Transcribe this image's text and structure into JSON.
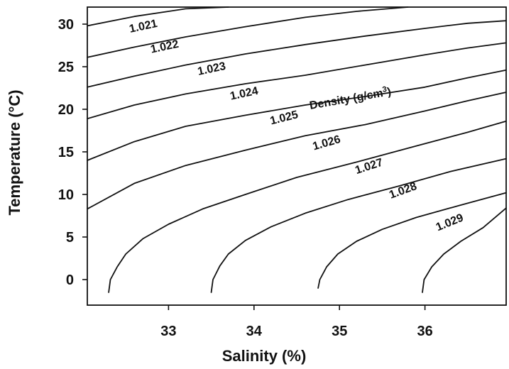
{
  "chart_data": {
    "type": "line",
    "title": "",
    "xlabel": "Salinity (%)",
    "ylabel": "Temperature (°C)",
    "xlim": [
      32.05,
      36.95
    ],
    "ylim": [
      -3,
      32
    ],
    "x_ticks": [
      33,
      34,
      35,
      36
    ],
    "y_ticks": [
      0,
      5,
      10,
      15,
      20,
      25,
      30
    ],
    "grid": false,
    "legend": "none",
    "annotation": {
      "text": "Density (g/cm",
      "superscript": "3",
      "suffix": ")"
    },
    "series": [
      {
        "name": "1.021",
        "x": [
          32.05,
          32.6,
          33.2,
          33.7
        ],
        "y": [
          29.8,
          30.9,
          31.8,
          32.0
        ]
      },
      {
        "name": "1.022",
        "x": [
          32.05,
          32.6,
          33.2,
          33.9,
          34.6,
          35.2,
          35.8
        ],
        "y": [
          26.1,
          27.3,
          28.5,
          29.7,
          30.8,
          31.5,
          32.0
        ]
      },
      {
        "name": "1.023",
        "x": [
          32.05,
          32.6,
          33.2,
          33.9,
          34.6,
          35.3,
          36.0,
          36.5,
          36.95
        ],
        "y": [
          22.6,
          23.9,
          25.2,
          26.5,
          27.6,
          28.6,
          29.5,
          30.1,
          30.4
        ]
      },
      {
        "name": "1.024",
        "x": [
          32.05,
          32.6,
          33.2,
          33.9,
          34.6,
          35.3,
          36.0,
          36.5,
          36.95
        ],
        "y": [
          18.9,
          20.5,
          21.8,
          23.0,
          24.0,
          25.2,
          26.4,
          27.2,
          27.8
        ]
      },
      {
        "name": "1.025",
        "x": [
          32.05,
          32.6,
          33.2,
          33.9,
          34.6,
          35.3,
          36.0,
          36.5,
          36.95
        ],
        "y": [
          14.0,
          16.2,
          18.0,
          19.3,
          20.5,
          21.5,
          22.6,
          23.7,
          24.6
        ]
      },
      {
        "name": "1.026",
        "x": [
          32.05,
          32.6,
          33.2,
          33.9,
          34.6,
          35.3,
          36.0,
          36.5,
          36.95
        ],
        "y": [
          8.3,
          11.3,
          13.4,
          15.2,
          16.9,
          18.2,
          19.8,
          21.0,
          22.0
        ]
      },
      {
        "name": "1.027",
        "x": [
          32.3,
          32.32,
          32.4,
          32.5,
          32.7,
          33.0,
          33.4,
          33.9,
          34.5,
          35.2,
          35.9,
          36.5,
          36.95
        ],
        "y": [
          -1.5,
          0.0,
          1.5,
          3.0,
          4.8,
          6.5,
          8.3,
          10.0,
          12.0,
          13.8,
          15.7,
          17.3,
          18.6
        ]
      },
      {
        "name": "1.028",
        "x": [
          33.5,
          33.52,
          33.6,
          33.7,
          33.9,
          34.2,
          34.6,
          35.1,
          35.7,
          36.3,
          36.95
        ],
        "y": [
          -1.5,
          0.0,
          1.6,
          3.0,
          4.6,
          6.2,
          7.8,
          9.4,
          11.0,
          12.7,
          14.2
        ]
      },
      {
        "name": "1.029",
        "x": [
          34.75,
          34.77,
          34.85,
          34.98,
          35.2,
          35.5,
          35.9,
          36.4,
          36.95
        ],
        "y": [
          -1.0,
          0.0,
          1.5,
          3.0,
          4.5,
          5.9,
          7.3,
          8.7,
          10.2
        ]
      },
      {
        "name": "",
        "x": [
          35.97,
          35.99,
          36.08,
          36.22,
          36.42,
          36.68,
          36.95
        ],
        "y": [
          -1.5,
          0.0,
          1.5,
          3.0,
          4.5,
          6.1,
          8.4
        ]
      }
    ],
    "contour_labels": [
      {
        "text": "1.021",
        "x": 32.55,
        "y": 29.0,
        "angle": -12
      },
      {
        "text": "1.022",
        "x": 32.8,
        "y": 26.6,
        "angle": -12
      },
      {
        "text": "1.023",
        "x": 33.35,
        "y": 24.0,
        "angle": -12
      },
      {
        "text": "1.024",
        "x": 33.73,
        "y": 21.1,
        "angle": -12
      },
      {
        "text": "1.025",
        "x": 34.2,
        "y": 18.2,
        "angle": -14
      },
      {
        "text": "1.026",
        "x": 34.7,
        "y": 15.2,
        "angle": -16
      },
      {
        "text": "1.027",
        "x": 35.2,
        "y": 12.4,
        "angle": -18
      },
      {
        "text": "1.028",
        "x": 35.6,
        "y": 9.5,
        "angle": -20
      },
      {
        "text": "1.029",
        "x": 36.15,
        "y": 5.7,
        "angle": -22
      }
    ]
  }
}
